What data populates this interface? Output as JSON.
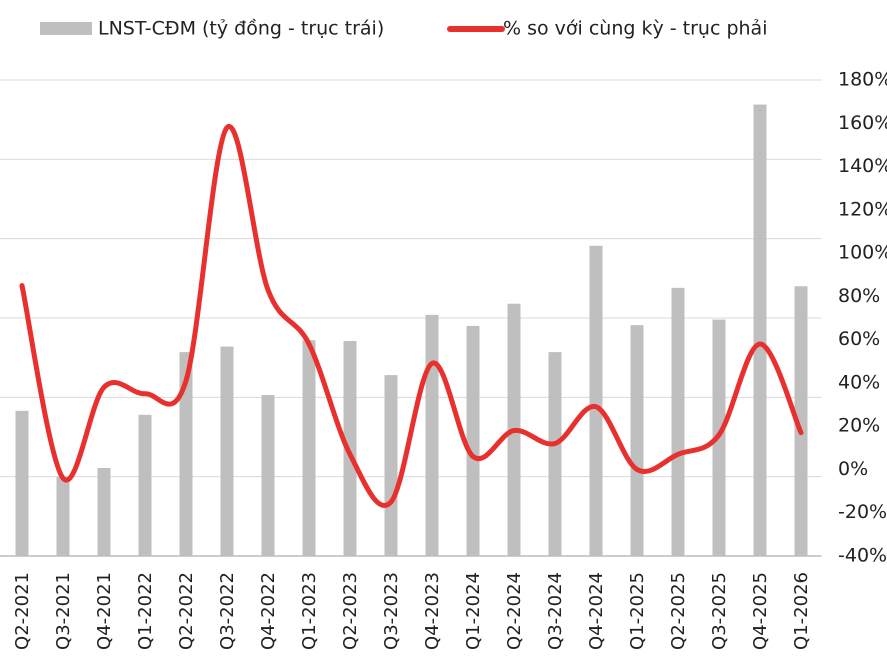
{
  "chart_data": {
    "type": "bar-line",
    "categories": [
      "Q2-2021",
      "Q3-2021",
      "Q4-2021",
      "Q1-2022",
      "Q2-2022",
      "Q3-2022",
      "Q4-2022",
      "Q1-2023",
      "Q2-2023",
      "Q3-2023",
      "Q4-2023",
      "Q1-2024",
      "Q2-2024",
      "Q3-2024",
      "Q4-2024",
      "Q1-2025",
      "Q2-2025",
      "Q3-2025",
      "Q4-2025",
      "Q1-2026"
    ],
    "series": [
      {
        "name": "LNST-CĐM (tỷ đồng - trục trái)",
        "type": "bar",
        "color": "#bfbfbf",
        "values": [
          1.83,
          1.0,
          1.11,
          1.78,
          2.57,
          2.64,
          2.03,
          2.72,
          2.71,
          2.28,
          3.04,
          2.9,
          3.18,
          2.57,
          3.91,
          2.91,
          3.38,
          2.98,
          5.69,
          3.4
        ]
      },
      {
        "name": "% so với cùng kỳ - trục phải",
        "type": "line",
        "axis": "y2",
        "color": "#e8312f",
        "values": [
          85,
          -4,
          38,
          35,
          41,
          158,
          83,
          58,
          7,
          -15,
          49,
          6,
          18,
          12,
          29,
          0,
          7,
          16,
          58,
          17
        ]
      }
    ],
    "ylim": [
      0,
      6
    ],
    "yticks": [
      0,
      1,
      2,
      3,
      4,
      5,
      6
    ],
    "y2lim": [
      -40,
      180
    ],
    "y2ticks": [
      {
        "value": 180,
        "label": "180%"
      },
      {
        "value": 160,
        "label": "160%"
      },
      {
        "value": 140,
        "label": "140%"
      },
      {
        "value": 120,
        "label": "120%"
      },
      {
        "value": 100,
        "label": "100%"
      },
      {
        "value": 80,
        "label": "80%"
      },
      {
        "value": 60,
        "label": "60%"
      },
      {
        "value": 40,
        "label": "40%"
      },
      {
        "value": 20,
        "label": "20%"
      },
      {
        "value": 0,
        "label": "0%"
      },
      {
        "value": -20,
        "label": "-20%"
      },
      {
        "value": -40,
        "label": "-40%"
      }
    ],
    "grid": true
  }
}
